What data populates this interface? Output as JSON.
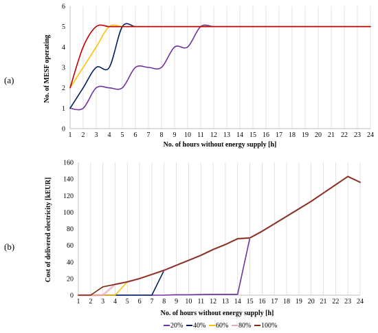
{
  "panels": [
    "(a)",
    "(b)"
  ],
  "chart_data": [
    {
      "type": "line",
      "panel_label": "(a)",
      "ylabel": "No. of MESF operating",
      "xlabel": "No. of hours without energy supply [h]",
      "xlim": [
        1,
        24
      ],
      "ylim": [
        0,
        6
      ],
      "x_ticks": [
        1,
        2,
        3,
        4,
        5,
        6,
        7,
        8,
        9,
        10,
        11,
        12,
        13,
        14,
        15,
        16,
        17,
        18,
        19,
        20,
        21,
        22,
        23,
        24
      ],
      "y_ticks": [
        0,
        1,
        2,
        3,
        4,
        5,
        6
      ],
      "smooth": true,
      "grid": "vertical",
      "series": [
        {
          "color": "#7030a0",
          "x": [
            1,
            2,
            3,
            4,
            5,
            6,
            7,
            8,
            9,
            10,
            11,
            12,
            13,
            14,
            15,
            16,
            17,
            18,
            19,
            20,
            21,
            22,
            23,
            24
          ],
          "y": [
            1,
            1,
            2,
            2,
            2,
            3,
            3,
            3,
            4,
            4,
            5,
            5,
            5,
            5,
            5,
            5,
            5,
            5,
            5,
            5,
            5,
            5,
            5,
            5
          ]
        },
        {
          "color": "#002060",
          "x": [
            1,
            2,
            3,
            4,
            5,
            6,
            7,
            8,
            9,
            10,
            11,
            12,
            13,
            14,
            15,
            16,
            17,
            18,
            19,
            20,
            21,
            22,
            23,
            24
          ],
          "y": [
            1,
            2,
            3,
            3,
            5,
            5,
            5,
            5,
            5,
            5,
            5,
            5,
            5,
            5,
            5,
            5,
            5,
            5,
            5,
            5,
            5,
            5,
            5,
            5
          ]
        },
        {
          "color": "#ffc000",
          "x": [
            1,
            2,
            3,
            4,
            5,
            6,
            7,
            8,
            9,
            10,
            11,
            12,
            13,
            14,
            15,
            16,
            17,
            18,
            19,
            20,
            21,
            22,
            23,
            24
          ],
          "y": [
            2,
            3,
            4,
            5,
            5,
            5,
            5,
            5,
            5,
            5,
            5,
            5,
            5,
            5,
            5,
            5,
            5,
            5,
            5,
            5,
            5,
            5,
            5,
            5
          ]
        },
        {
          "color": "#c00000",
          "x": [
            1,
            2,
            3,
            4,
            5,
            6,
            7,
            8,
            9,
            10,
            11,
            12,
            13,
            14,
            15,
            16,
            17,
            18,
            19,
            20,
            21,
            22,
            23,
            24
          ],
          "y": [
            2,
            4,
            5,
            5,
            5,
            5,
            5,
            5,
            5,
            5,
            5,
            5,
            5,
            5,
            5,
            5,
            5,
            5,
            5,
            5,
            5,
            5,
            5,
            5
          ]
        }
      ]
    },
    {
      "type": "line",
      "panel_label": "(b)",
      "ylabel": "Cost of delivered electricity [kEUR]",
      "xlabel": "No. of hours without energy supply [h]",
      "xlim": [
        1,
        24
      ],
      "ylim": [
        0,
        160
      ],
      "x_ticks": [
        1,
        2,
        3,
        4,
        5,
        6,
        7,
        8,
        9,
        10,
        11,
        12,
        13,
        14,
        15,
        16,
        17,
        18,
        19,
        20,
        21,
        22,
        23,
        24
      ],
      "y_ticks": [
        0,
        20,
        40,
        60,
        80,
        100,
        120,
        140,
        160
      ],
      "smooth": false,
      "grid": "vertical",
      "legend": "bottom",
      "series": [
        {
          "name": "20%",
          "color": "#7030a0",
          "x": [
            1,
            2,
            3,
            4,
            5,
            6,
            7,
            8,
            9,
            10,
            11,
            12,
            13,
            14,
            15,
            16,
            17,
            18,
            19,
            20,
            21,
            22,
            23,
            24
          ],
          "y": [
            0,
            0,
            0,
            0,
            0,
            0,
            0,
            0,
            0.5,
            0.5,
            0.8,
            1,
            1,
            1,
            69,
            77,
            86,
            95,
            104,
            113,
            123,
            133,
            143,
            136
          ]
        },
        {
          "name": "40%",
          "color": "#002060",
          "x": [
            1,
            2,
            3,
            4,
            5,
            6,
            7,
            8,
            9,
            10,
            11,
            12,
            13,
            14,
            15,
            16,
            17,
            18,
            19,
            20,
            21,
            22,
            23,
            24
          ],
          "y": [
            0,
            0,
            0,
            0,
            0,
            0,
            0,
            30,
            36,
            42,
            48,
            55,
            61,
            68,
            69,
            77,
            86,
            95,
            104,
            113,
            123,
            133,
            143,
            136
          ]
        },
        {
          "name": "60%",
          "color": "#ffc000",
          "x": [
            1,
            2,
            3,
            4,
            5,
            6,
            7,
            8,
            9,
            10,
            11,
            12,
            13,
            14,
            15,
            16,
            17,
            18,
            19,
            20,
            21,
            22,
            23,
            24
          ],
          "y": [
            0,
            0,
            0,
            0,
            16,
            20,
            25,
            30,
            36,
            42,
            48,
            55,
            61,
            68,
            69,
            77,
            86,
            95,
            104,
            113,
            123,
            133,
            143,
            136
          ]
        },
        {
          "name": "80%",
          "color": "#e6a8c8",
          "x": [
            1,
            2,
            3,
            4,
            5,
            6,
            7,
            8,
            9,
            10,
            11,
            12,
            13,
            14,
            15,
            16,
            17,
            18,
            19,
            20,
            21,
            22,
            23,
            24
          ],
          "y": [
            0,
            0,
            0,
            13,
            16,
            20,
            25,
            30,
            36,
            42,
            48,
            55,
            61,
            68,
            69,
            77,
            86,
            95,
            104,
            113,
            123,
            133,
            143,
            136
          ]
        },
        {
          "name": "100%",
          "color": "#7b2a10",
          "x": [
            1,
            2,
            3,
            4,
            5,
            6,
            7,
            8,
            9,
            10,
            11,
            12,
            13,
            14,
            15,
            16,
            17,
            18,
            19,
            20,
            21,
            22,
            23,
            24
          ],
          "y": [
            0,
            0,
            10,
            13,
            16,
            20,
            25,
            30,
            36,
            42,
            48,
            55,
            61,
            68,
            69,
            77,
            86,
            95,
            104,
            113,
            123,
            133,
            143,
            136
          ]
        }
      ]
    }
  ]
}
